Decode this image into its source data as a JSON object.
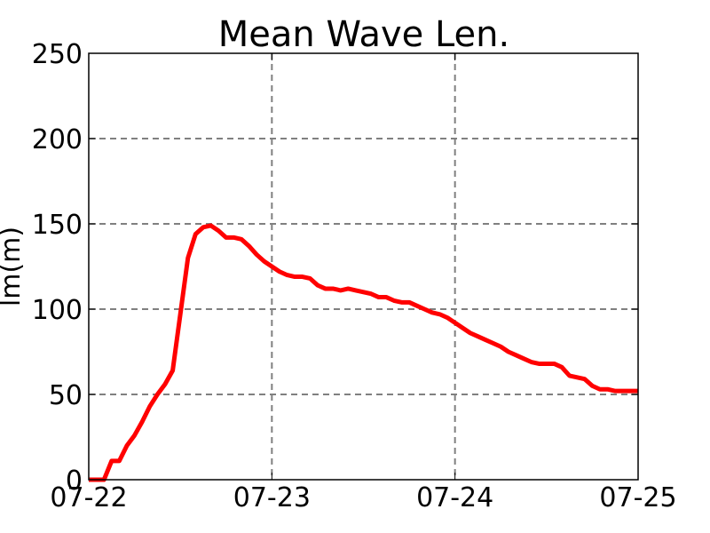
{
  "chart_data": {
    "type": "line",
    "title": "Mean Wave Len.",
    "xlabel": "",
    "ylabel": "lm(m)",
    "x_tick_labels": [
      "07-22",
      "07-23",
      "07-24",
      "07-25"
    ],
    "y_tick_labels": [
      "0",
      "50",
      "100",
      "150",
      "200",
      "250"
    ],
    "xlim": [
      "07-22 00:00",
      "07-25 00:00"
    ],
    "ylim": [
      0,
      250
    ],
    "grid": true,
    "line_color": "#ff0000",
    "grid_color": "#808080",
    "series": [
      {
        "x": [
          "07-22 00:00",
          "07-22 01:00",
          "07-22 02:00",
          "07-22 03:00",
          "07-22 04:00",
          "07-22 05:00",
          "07-22 06:00",
          "07-22 07:00",
          "07-22 08:00",
          "07-22 09:00",
          "07-22 10:00",
          "07-22 11:00",
          "07-22 12:00",
          "07-22 13:00",
          "07-22 14:00",
          "07-22 15:00",
          "07-22 16:00",
          "07-22 17:00",
          "07-22 18:00",
          "07-22 19:00",
          "07-22 20:00",
          "07-22 21:00",
          "07-22 22:00",
          "07-22 23:00",
          "07-23 00:00",
          "07-23 01:00",
          "07-23 02:00",
          "07-23 03:00",
          "07-23 04:00",
          "07-23 05:00",
          "07-23 06:00",
          "07-23 07:00",
          "07-23 08:00",
          "07-23 09:00",
          "07-23 10:00",
          "07-23 11:00",
          "07-23 12:00",
          "07-23 13:00",
          "07-23 14:00",
          "07-23 15:00",
          "07-23 16:00",
          "07-23 17:00",
          "07-23 18:00",
          "07-23 19:00",
          "07-23 20:00",
          "07-23 21:00",
          "07-23 22:00",
          "07-23 23:00",
          "07-24 00:00",
          "07-24 01:00",
          "07-24 02:00",
          "07-24 03:00",
          "07-24 04:00",
          "07-24 05:00",
          "07-24 06:00",
          "07-24 07:00",
          "07-24 08:00",
          "07-24 09:00",
          "07-24 10:00",
          "07-24 11:00",
          "07-24 12:00",
          "07-24 13:00",
          "07-24 14:00",
          "07-24 15:00",
          "07-24 16:00",
          "07-24 17:00",
          "07-24 18:00",
          "07-24 19:00",
          "07-24 20:00",
          "07-24 21:00",
          "07-24 22:00",
          "07-24 23:00",
          "07-25 00:00"
        ],
        "y": [
          0,
          0,
          0,
          11,
          11,
          20,
          26,
          34,
          43,
          50,
          56,
          64,
          97,
          130,
          144,
          148,
          149,
          146,
          142,
          142,
          141,
          137,
          132,
          128,
          125,
          122,
          120,
          119,
          119,
          118,
          114,
          112,
          112,
          111,
          112,
          111,
          110,
          109,
          107,
          107,
          105,
          104,
          104,
          102,
          100,
          98,
          97,
          95,
          92,
          89,
          86,
          84,
          82,
          80,
          78,
          75,
          73,
          71,
          69,
          68,
          68,
          68,
          66,
          61,
          60,
          59,
          55,
          53,
          53,
          52,
          52,
          52,
          52
        ]
      }
    ]
  }
}
